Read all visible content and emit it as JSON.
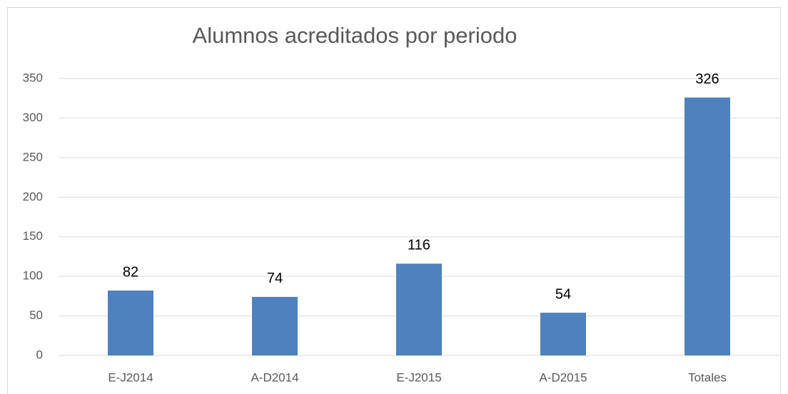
{
  "chart_data": {
    "type": "bar",
    "title": "Alumnos acreditados por periodo",
    "categories": [
      "E-J2014",
      "A-D2014",
      "E-J2015",
      "A-D2015",
      "Totales"
    ],
    "values": [
      82,
      74,
      116,
      54,
      326
    ],
    "color": "#4f81bd",
    "ylim": [
      0,
      350
    ],
    "yticks": [
      0,
      50,
      100,
      150,
      200,
      250,
      300,
      350
    ],
    "grid": true
  }
}
